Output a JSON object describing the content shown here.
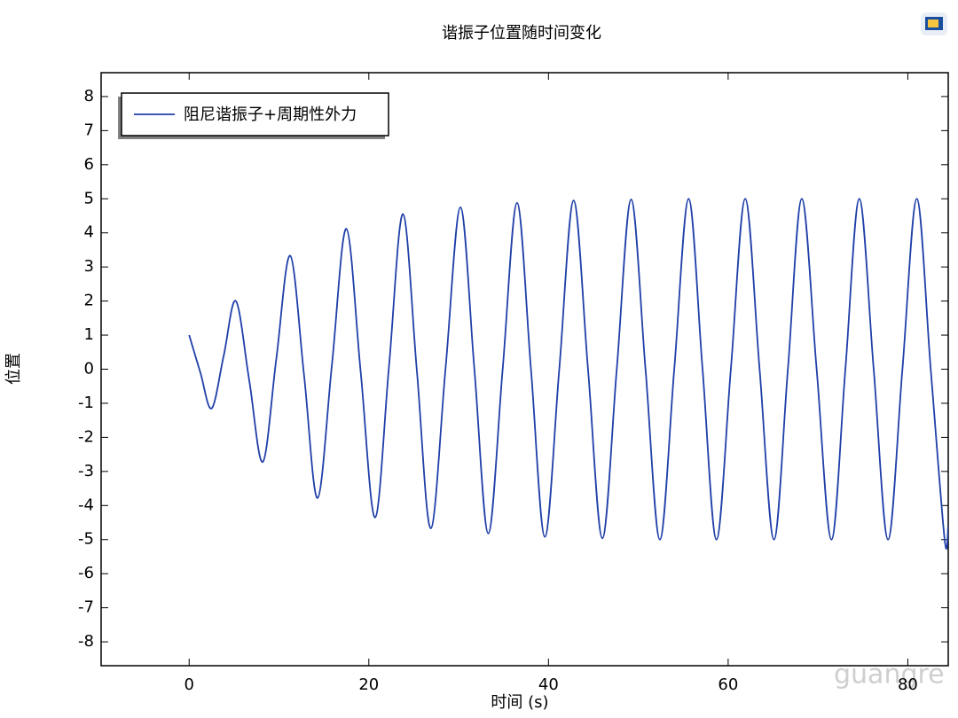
{
  "chart_data": {
    "type": "line",
    "title": "谐振子位置随时间变化",
    "xlabel": "时间 (s)",
    "ylabel": "位置",
    "watermark": "guangre",
    "x": [
      0,
      1.25,
      2.5,
      3.85,
      5.2,
      6.7,
      8.2,
      9.7,
      11.25,
      12.8,
      14.3,
      15.9,
      17.5,
      19.1,
      20.7,
      22.25,
      23.8,
      25.35,
      26.9,
      28.55,
      30.2,
      31.75,
      33.3,
      34.9,
      36.5,
      38.05,
      39.6,
      41.2,
      42.8,
      44.4,
      46.0,
      47.6,
      49.2,
      50.8,
      52.4,
      54.0,
      55.6,
      57.15,
      58.7,
      60.3,
      61.9,
      63.5,
      65.1,
      66.65,
      68.2,
      69.85,
      71.5,
      73.05,
      74.6,
      76.2,
      77.8,
      79.4,
      81.0,
      82.55,
      84.1,
      84.5
    ],
    "series": [
      {
        "name": "阻尼谐振子+周期性外力",
        "color": "#1f3fa8",
        "values": [
          1,
          -0.1,
          -1.15,
          0.4,
          2.0,
          -0.35,
          -2.72,
          0.3,
          3.33,
          -0.2,
          -3.78,
          0.15,
          4.12,
          -0.1,
          -4.35,
          0.1,
          4.55,
          -0.05,
          -4.67,
          0.05,
          4.75,
          0,
          -4.82,
          0,
          4.88,
          0,
          -4.92,
          0,
          4.95,
          0,
          -4.96,
          0,
          4.98,
          0,
          -5,
          0,
          5,
          0,
          -5,
          0,
          5,
          0,
          -5,
          0,
          5,
          0,
          -5,
          0,
          5,
          0,
          -5,
          0,
          5,
          0,
          -5,
          -4.6
        ]
      }
    ],
    "xlim": [
      -9.8,
      84.5
    ],
    "xticks": [
      0,
      20,
      40,
      60,
      80
    ],
    "ylim": [
      -8.7,
      8.7
    ],
    "yticks": [
      -8,
      -7,
      -6,
      -5,
      -4,
      -3,
      -2,
      -1,
      0,
      1,
      2,
      3,
      4,
      5,
      6,
      7,
      8
    ],
    "legend": "upper left",
    "grid": false
  }
}
